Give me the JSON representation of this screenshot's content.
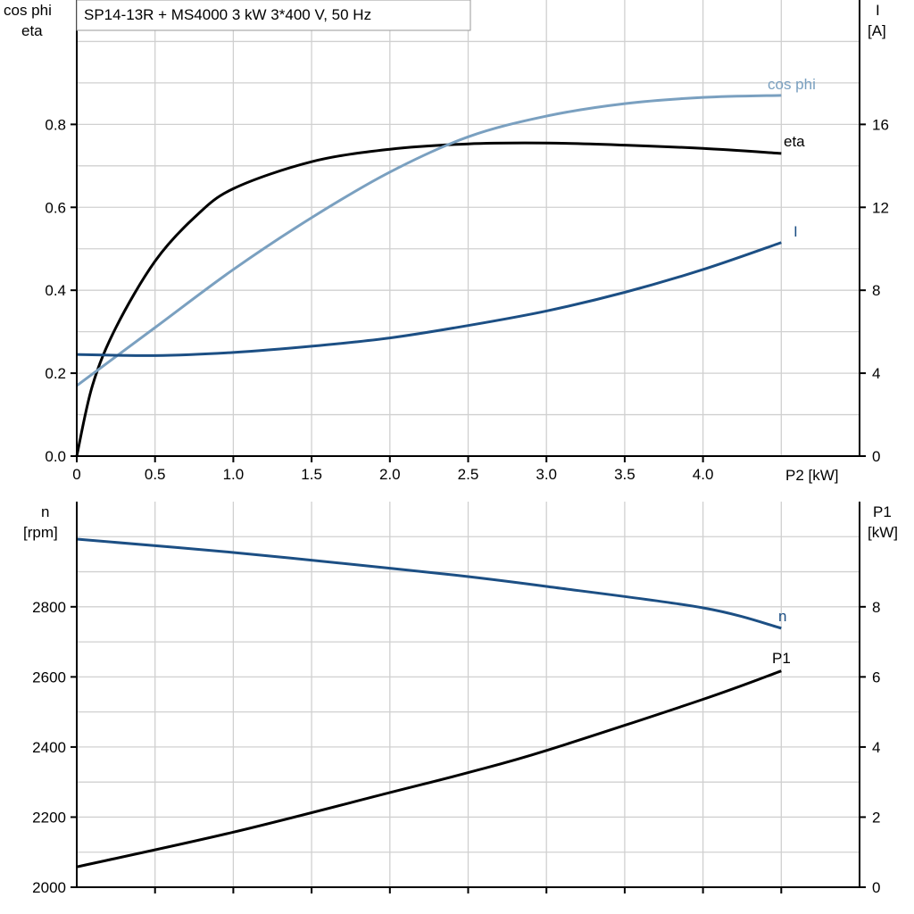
{
  "title": "SP14-13R + MS4000   3 kW   3*400 V, 50 Hz",
  "chart_data": [
    {
      "type": "line",
      "xlabel": "P2 [kW]",
      "ylabel_left": [
        "cos phi",
        "eta"
      ],
      "ylabel_right": [
        "I",
        "[A]"
      ],
      "xlim": [
        0,
        5
      ],
      "ylim_left": [
        0,
        1.1
      ],
      "ylim_right": [
        0,
        22
      ],
      "xticks": [
        "0",
        "0.5",
        "1.0",
        "1.5",
        "2.0",
        "2.5",
        "3.0",
        "3.5",
        "4.0"
      ],
      "yticks_left": [
        "0.0",
        "0.2",
        "0.4",
        "0.6",
        "0.8"
      ],
      "yticks_right": [
        "0",
        "4",
        "8",
        "12",
        "16"
      ],
      "grid": true,
      "series": [
        {
          "name": "eta",
          "axis": "left",
          "color": "#000000",
          "x": [
            0,
            0.1,
            0.25,
            0.5,
            0.75,
            1.0,
            1.5,
            2.0,
            2.5,
            3.0,
            3.5,
            4.0,
            4.5
          ],
          "y": [
            0,
            0.17,
            0.31,
            0.47,
            0.575,
            0.645,
            0.71,
            0.74,
            0.753,
            0.755,
            0.75,
            0.742,
            0.73
          ]
        },
        {
          "name": "cos phi",
          "axis": "left",
          "color": "#7aa0c0",
          "x": [
            0,
            0.5,
            1.0,
            1.5,
            2.0,
            2.5,
            3.0,
            3.5,
            4.0,
            4.5
          ],
          "y": [
            0.17,
            0.31,
            0.45,
            0.575,
            0.685,
            0.77,
            0.82,
            0.85,
            0.865,
            0.87
          ]
        },
        {
          "name": "I",
          "axis": "right",
          "color": "#1c4f84",
          "x": [
            0,
            0.5,
            1.0,
            1.5,
            2.0,
            2.5,
            3.0,
            3.5,
            4.0,
            4.5
          ],
          "y": [
            4.9,
            4.85,
            5.0,
            5.3,
            5.7,
            6.3,
            7.0,
            7.9,
            9.0,
            10.3
          ]
        }
      ]
    },
    {
      "type": "line",
      "xlim": [
        0,
        5
      ],
      "ylabel_left": [
        "n",
        "[rpm]"
      ],
      "ylabel_right": [
        "P1",
        "[kW]"
      ],
      "ylim_left": [
        2000,
        3100
      ],
      "ylim_right": [
        0,
        11
      ],
      "yticks_left": [
        "2000",
        "2200",
        "2400",
        "2600",
        "2800"
      ],
      "yticks_right": [
        "0",
        "2",
        "4",
        "6",
        "8"
      ],
      "grid": true,
      "series": [
        {
          "name": "n",
          "axis": "left",
          "color": "#1c4f84",
          "x": [
            0,
            1.0,
            2.0,
            2.5,
            3.0,
            4.0,
            4.5
          ],
          "y": [
            2993,
            2955,
            2910,
            2886,
            2858,
            2797,
            2739
          ]
        },
        {
          "name": "P1",
          "axis": "right",
          "color": "#000000",
          "x": [
            0,
            1.0,
            2.0,
            2.5,
            3.0,
            4.0,
            4.5
          ],
          "y": [
            0.58,
            1.57,
            2.7,
            3.27,
            3.9,
            5.36,
            6.17
          ]
        }
      ]
    }
  ]
}
